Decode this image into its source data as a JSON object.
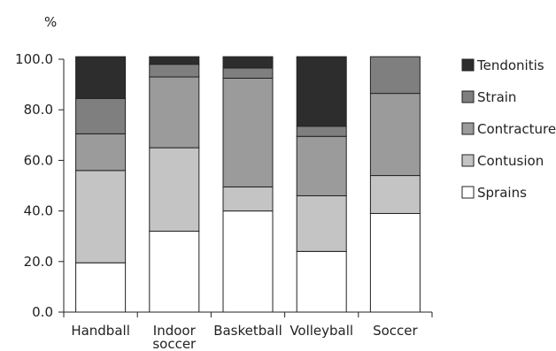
{
  "chart_data": {
    "type": "bar",
    "stacked": true,
    "unit_label": "%",
    "categories": [
      [
        "Handball"
      ],
      [
        "Indoor",
        "soccer"
      ],
      [
        "Basketball"
      ],
      [
        "Volleyball"
      ],
      [
        "Soccer"
      ]
    ],
    "series": [
      {
        "name": "Sprains",
        "color": "#ffffff",
        "values": [
          19.5,
          32.0,
          40.0,
          24.0,
          39.0
        ]
      },
      {
        "name": "Contusion",
        "color": "#c4c4c4",
        "values": [
          36.5,
          33.0,
          9.5,
          22.0,
          15.0
        ]
      },
      {
        "name": "Contracture",
        "color": "#9b9b9b",
        "values": [
          14.5,
          28.0,
          43.0,
          23.5,
          32.5
        ]
      },
      {
        "name": "Strain",
        "color": "#7f7f7f",
        "values": [
          14.0,
          5.0,
          4.0,
          4.0,
          14.5
        ]
      },
      {
        "name": "Tendonitis",
        "color": "#2d2d2d",
        "values": [
          16.5,
          3.0,
          4.5,
          27.5,
          0.0
        ]
      }
    ],
    "ylim": [
      0,
      100
    ],
    "yticks": [
      "0.0",
      "20.0",
      "40.0",
      "60.0",
      "80.0",
      "100.0"
    ],
    "ytick_values": [
      0,
      20,
      40,
      60,
      80,
      100
    ],
    "legend_position": "right",
    "legend_order": [
      "Tendonitis",
      "Strain",
      "Contracture",
      "Contusion",
      "Sprains"
    ],
    "grid": false
  }
}
